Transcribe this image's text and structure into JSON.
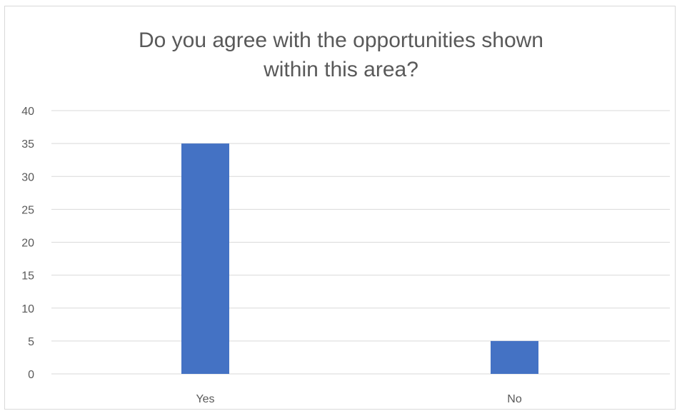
{
  "chart_data": {
    "type": "bar",
    "title_lines": [
      "Do you agree with the opportunities shown",
      "within this area?"
    ],
    "categories": [
      "Yes",
      "No"
    ],
    "values": [
      35,
      5
    ],
    "ylim": [
      0,
      40
    ],
    "yticks": [
      "0",
      "5",
      "10",
      "15",
      "20",
      "25",
      "30",
      "35",
      "40"
    ],
    "grid": true,
    "legend": "none",
    "colors": {
      "bar": "#4472C4",
      "grid": "#d9d9d9",
      "text": "#595959"
    }
  }
}
